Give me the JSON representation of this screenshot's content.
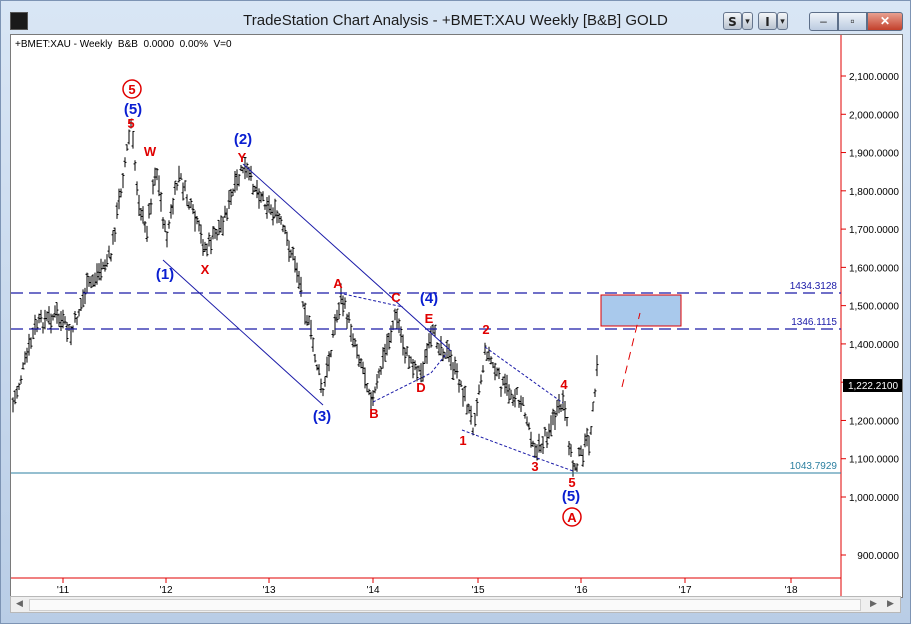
{
  "window": {
    "title": "TradeStation Chart Analysis - +BMET:XAU Weekly [B&B] GOLD",
    "buttons": {
      "s_label": "S",
      "i_label": "I",
      "dropdown_arrow": "▾",
      "minimize": "–",
      "maximize": "▫",
      "close": "✕"
    }
  },
  "chart": {
    "info_line": "+BMET:XAU - Weekly  B&B  0.0000  0.00%  V=0",
    "price_labels": [
      "2,100.0000",
      "2,000.0000",
      "1,900.0000",
      "1,800.0000",
      "1,700.0000",
      "1,600.0000",
      "1,500.0000",
      "1,400.0000",
      "1,300.0000",
      "1,200.0000",
      "1,100.0000",
      "1,000.0000",
      "900.0000"
    ],
    "x_labels": [
      "'11",
      "'12",
      "'13",
      "'14",
      "'15",
      "'16",
      "'17",
      "'18"
    ],
    "last_price": "1,222.2100",
    "levels": [
      {
        "value": "1434.3128",
        "style": "dashed"
      },
      {
        "value": "1346.1115",
        "style": "dashed"
      },
      {
        "value": "1043.7929",
        "style": "solid"
      }
    ],
    "wave_labels_blue": [
      "(5)",
      "(2)",
      "(1)",
      "(3)",
      "(4)",
      "(5)"
    ],
    "wave_labels_red": [
      "5",
      "W",
      "Y",
      "X",
      "A",
      "B",
      "C",
      "D",
      "E",
      "1",
      "2",
      "3",
      "4",
      "5"
    ],
    "circled_labels": [
      "5",
      "A"
    ],
    "colors": {
      "up_blue": "#0a1fd1",
      "label_red": "#e00000",
      "line_navy": "#1a1aa8",
      "target_box": "#a9c9ec",
      "support_teal": "#2b7fa0"
    }
  }
}
